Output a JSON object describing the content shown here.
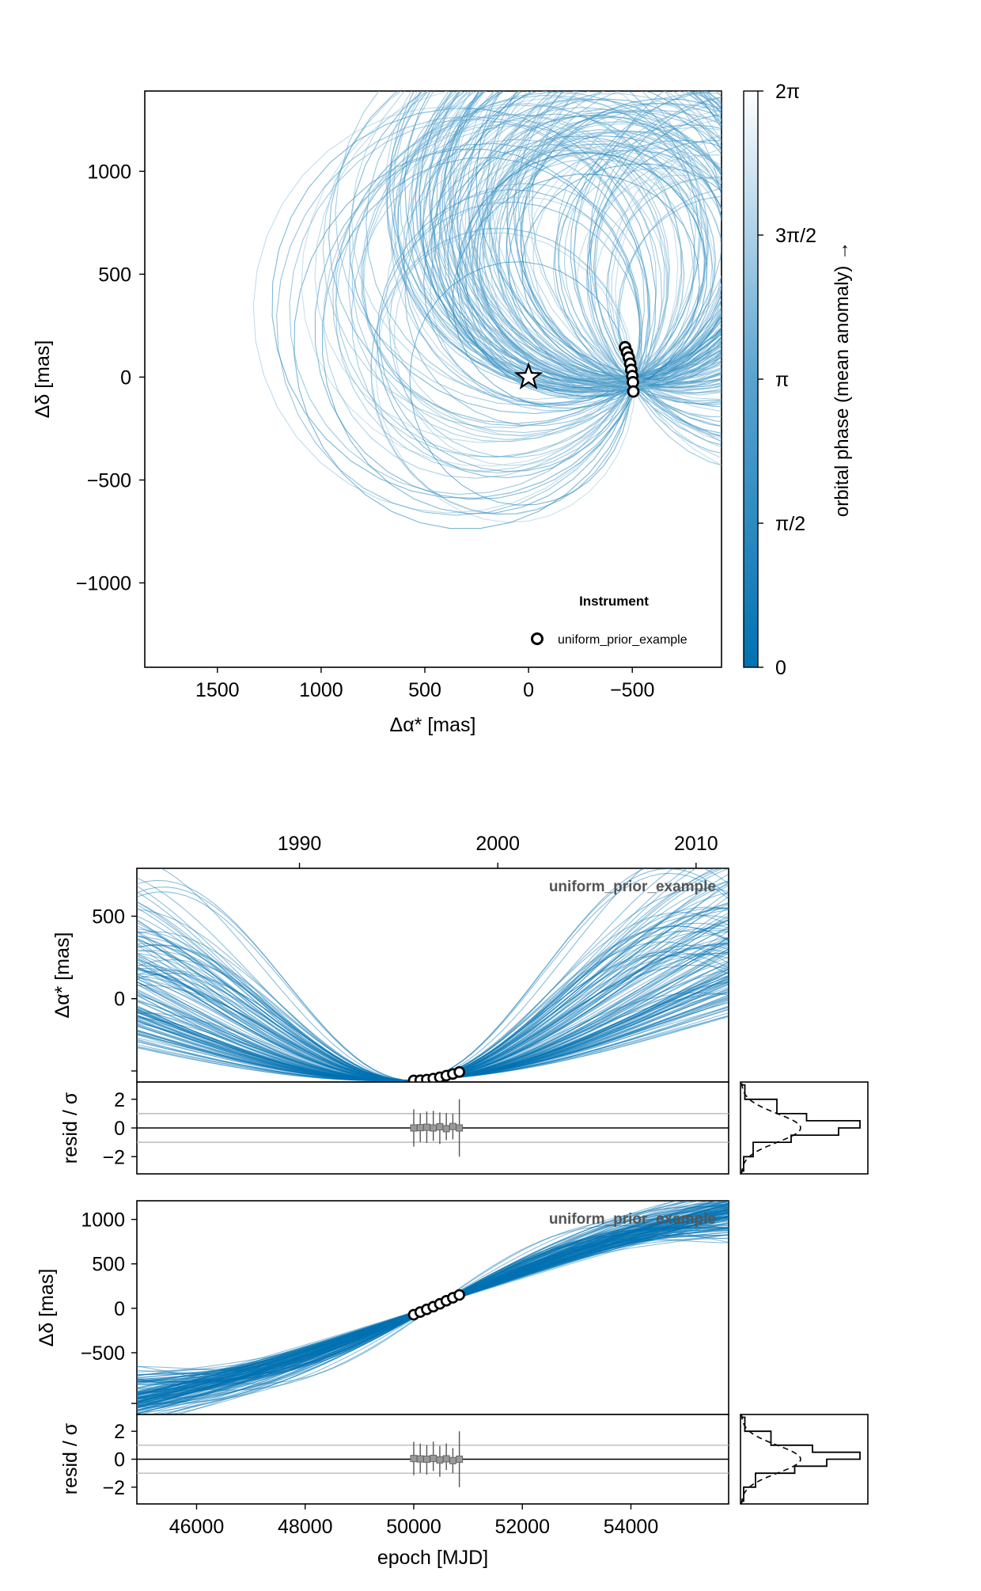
{
  "chart_data": [
    {
      "id": "sky",
      "type": "line",
      "xlabel": "Δα* [mas]",
      "ylabel": "Δδ [mas]",
      "xlim": [
        1850,
        -930
      ],
      "ylim": [
        -1410,
        1390
      ],
      "xticks": [
        1500,
        1000,
        500,
        0,
        -500
      ],
      "xtick_labels": [
        "1500",
        "1000",
        "500",
        "0",
        "−500"
      ],
      "yticks": [
        1000,
        500,
        0,
        -500,
        -1000
      ],
      "ytick_labels": [
        "1000",
        "500",
        "0",
        "−500",
        "−1000"
      ],
      "star_position": [
        0,
        0
      ],
      "star_icon": "star-outline-icon",
      "observations": {
        "ra_offset": [
          -465,
          -475,
          -483,
          -490,
          -495,
          -500,
          -503,
          -505
        ],
        "dec_offset": [
          145,
          120,
          95,
          65,
          35,
          5,
          -25,
          -70
        ]
      },
      "legend": {
        "title": "Instrument",
        "entries": [
          "uniform_prior_example"
        ],
        "placement": "bottom-right"
      },
      "colorbar": {
        "label": "orbital phase (mean anomaly) →",
        "tick_labels": [
          "0",
          "π/2",
          "π",
          "3π/2",
          "2π"
        ],
        "range": [
          0,
          6.283
        ],
        "color_low": "#0072b2",
        "color_high": "#ffffff"
      },
      "orbit_color": "#0072b2",
      "grid": false
    },
    {
      "id": "ra-timeseries",
      "type": "line",
      "xlabel": "",
      "ylabel": "Δα* [mas]",
      "annotation": "uniform_prior_example",
      "top_axis_ticks": [
        "1990",
        "2000",
        "2010"
      ],
      "top_axis_years": [
        1990,
        2000,
        2010
      ],
      "xlim": [
        44900,
        55800
      ],
      "ylim": [
        -505,
        790
      ],
      "ytick_labels": [
        "500",
        "0"
      ],
      "yticks": [
        500,
        0
      ],
      "observations": {
        "epoch": [
          50000,
          50120,
          50240,
          50360,
          50480,
          50600,
          50720,
          50840
        ],
        "value": [
          -495,
          -494,
          -490,
          -484,
          -476,
          -466,
          -456,
          -444
        ]
      },
      "series_color": "#0072b2",
      "grid": false
    },
    {
      "id": "ra-residuals",
      "type": "scatter",
      "ylabel": "resid / σ",
      "ytick_labels": [
        "2",
        "0",
        "−2"
      ],
      "yticks": [
        2,
        0,
        -2
      ],
      "ylim": [
        -3.2,
        3.2
      ],
      "reference_lines": [
        1,
        -1
      ],
      "residuals": {
        "epoch": [
          50000,
          50120,
          50240,
          50360,
          50480,
          50600,
          50720,
          50840
        ],
        "value": [
          0.0,
          0.02,
          0.05,
          0.0,
          0.08,
          -0.05,
          0.1,
          0.0
        ],
        "lo": [
          -1.3,
          -1.0,
          -1.1,
          -0.9,
          -1.2,
          -0.8,
          -0.9,
          -2.0
        ],
        "hi": [
          1.3,
          1.0,
          1.1,
          1.2,
          1.0,
          1.1,
          0.9,
          2.0
        ]
      }
    },
    {
      "id": "ra-residual-histogram",
      "type": "bar",
      "bins": [
        -3.0,
        -2.0,
        -1.0,
        -0.5,
        0.0,
        0.5,
        1.0,
        2.0,
        3.0
      ],
      "counts": [
        0.02,
        0.1,
        0.42,
        0.82,
        1.0,
        0.55,
        0.3,
        0.03
      ],
      "reference": "normal-distribution-dashed"
    },
    {
      "id": "dec-timeseries",
      "type": "line",
      "xlabel": "",
      "ylabel": "Δδ [mas]",
      "annotation": "uniform_prior_example",
      "xlim": [
        44900,
        55800
      ],
      "ylim": [
        -1195,
        1210
      ],
      "ytick_labels": [
        "1000",
        "500",
        "0",
        "−500"
      ],
      "yticks": [
        1000,
        500,
        0,
        -500
      ],
      "observations": {
        "epoch": [
          50000,
          50120,
          50240,
          50360,
          50480,
          50600,
          50720,
          50840
        ],
        "value": [
          -72,
          -42,
          -12,
          18,
          50,
          85,
          118,
          150
        ]
      },
      "series_color": "#0072b2",
      "grid": false
    },
    {
      "id": "dec-residuals",
      "type": "scatter",
      "xlabel": "epoch [MJD]",
      "xtick_labels": [
        "46000",
        "48000",
        "50000",
        "52000",
        "54000"
      ],
      "xticks": [
        46000,
        48000,
        50000,
        52000,
        54000
      ],
      "ylabel": "resid / σ",
      "ytick_labels": [
        "2",
        "0",
        "−2"
      ],
      "yticks": [
        2,
        0,
        -2
      ],
      "ylim": [
        -3.2,
        3.2
      ],
      "reference_lines": [
        1,
        -1
      ],
      "residuals": {
        "epoch": [
          50000,
          50120,
          50240,
          50360,
          50480,
          50600,
          50720,
          50840
        ],
        "value": [
          0.05,
          0.02,
          0.0,
          0.06,
          -0.05,
          0.03,
          -0.1,
          0.0
        ],
        "lo": [
          -1.2,
          -1.0,
          -1.1,
          -0.9,
          -1.2,
          -0.8,
          -0.9,
          -2.0
        ],
        "hi": [
          1.2,
          1.1,
          1.0,
          1.2,
          1.0,
          1.1,
          0.9,
          2.0
        ]
      }
    },
    {
      "id": "dec-residual-histogram",
      "type": "bar",
      "bins": [
        -3.0,
        -2.0,
        -1.0,
        -0.5,
        0.0,
        0.5,
        1.0,
        2.0,
        3.0
      ],
      "counts": [
        0.02,
        0.12,
        0.45,
        0.72,
        1.0,
        0.6,
        0.25,
        0.03
      ],
      "reference": "normal-distribution-dashed"
    }
  ]
}
